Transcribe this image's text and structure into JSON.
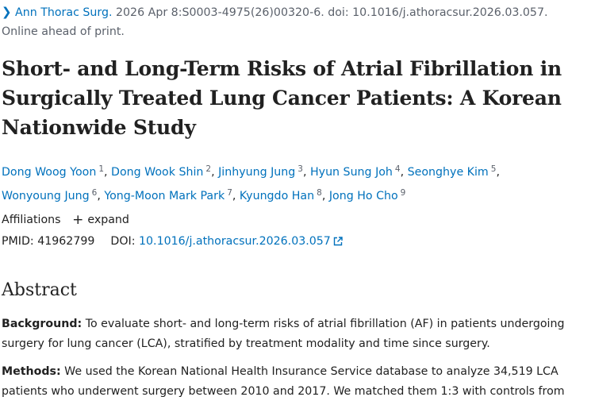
{
  "citation": {
    "journal": "Ann Thorac Surg.",
    "details": "2026 Apr 8:S0003-4975(26)00320-6. doi: 10.1016/j.athoracsur.2026.03.057.",
    "status": "Online ahead of print."
  },
  "title": "Short- and Long-Term Risks of Atrial Fibrillation in Surgically Treated Lung Cancer Patients: A Korean Nationwide Study",
  "authors": [
    {
      "name": "Dong Woog Yoon",
      "aff": "1"
    },
    {
      "name": "Dong Wook Shin",
      "aff": "2"
    },
    {
      "name": "Jinhyung Jung",
      "aff": "3"
    },
    {
      "name": "Hyun Sung Joh",
      "aff": "4"
    },
    {
      "name": "Seonghye Kim",
      "aff": "5"
    },
    {
      "name": "Wonyoung Jung",
      "aff": "6"
    },
    {
      "name": "Yong-Moon Mark Park",
      "aff": "7"
    },
    {
      "name": "Kyungdo Han",
      "aff": "8"
    },
    {
      "name": "Jong Ho Cho",
      "aff": "9"
    }
  ],
  "affiliations": {
    "label": "Affiliations",
    "expand_label": "expand"
  },
  "ids": {
    "pmid_label": "PMID:",
    "pmid": "41962799",
    "doi_label": "DOI:",
    "doi": "10.1016/j.athoracsur.2026.03.057"
  },
  "abstract": {
    "heading": "Abstract",
    "background_label": "Background:",
    "background_text": "To evaluate short- and long-term risks of atrial fibrillation (AF) in patients undergoing surgery for lung cancer (LCA), stratified by treatment modality and time since surgery.",
    "methods_label": "Methods:",
    "methods_text": "We used the Korean National Health Insurance Service database to analyze 34,519 LCA patients who underwent surgery between 2010 and 2017. We matched them 1:3 with controls from"
  },
  "colors": {
    "link": "#0071bc",
    "text": "#212121",
    "muted": "#5b616b"
  }
}
